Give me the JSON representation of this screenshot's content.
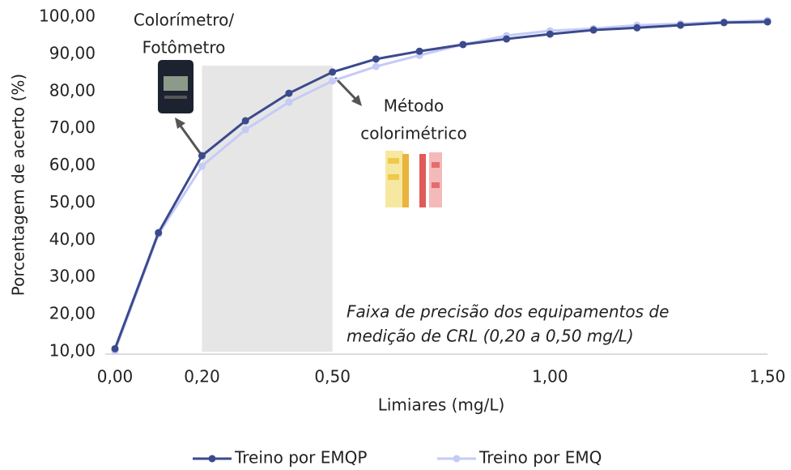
{
  "chart_data": {
    "type": "line",
    "x_label": "Limiares (mg/L)",
    "y_label": "Porcentagem de acerto (%)",
    "x": [
      0,
      0.1,
      0.2,
      0.3,
      0.4,
      0.5,
      0.6,
      0.7,
      0.8,
      0.9,
      1.0,
      1.1,
      1.2,
      1.3,
      1.4,
      1.5
    ],
    "series": [
      {
        "name": "Treino por EMQP",
        "color": "#3b4a8c",
        "values": [
          10.8,
          42.0,
          62.7,
          72.1,
          79.5,
          85.2,
          88.7,
          90.8,
          92.6,
          94.1,
          95.4,
          96.5,
          97.1,
          97.8,
          98.5,
          98.7
        ]
      },
      {
        "name": "Treino por EMQ",
        "color": "#c5cbf5",
        "values": [
          10.2,
          41.6,
          59.9,
          69.7,
          77.1,
          82.8,
          86.7,
          89.7,
          92.6,
          95.0,
          96.3,
          96.9,
          97.8,
          98.2,
          98.7,
          99.1
        ]
      }
    ],
    "xlim": [
      0,
      1.5
    ],
    "xticks": [
      {
        "value": 0,
        "label": "0,00"
      },
      {
        "value": 0.2,
        "label": "0,20"
      },
      {
        "value": 0.5,
        "label": "0,50"
      },
      {
        "value": 1.0,
        "label": "1,00"
      },
      {
        "value": 1.5,
        "label": "1,50"
      }
    ],
    "ylim": [
      10,
      100
    ],
    "yticks": [
      {
        "value": 10,
        "label": "10,00"
      },
      {
        "value": 20,
        "label": "20,00"
      },
      {
        "value": 30,
        "label": "30,00"
      },
      {
        "value": 40,
        "label": "40,00"
      },
      {
        "value": 50,
        "label": "50,00"
      },
      {
        "value": 60,
        "label": "60,00"
      },
      {
        "value": 70,
        "label": "70,00"
      },
      {
        "value": 80,
        "label": "80,00"
      },
      {
        "value": 90,
        "label": "90,00"
      },
      {
        "value": 100,
        "label": "100,00"
      }
    ],
    "shaded_range": [
      0.2,
      0.5
    ],
    "legend": "bottom",
    "annotations": {
      "device": [
        "Colorímetro/",
        "Fotômetro"
      ],
      "method": [
        "Método",
        "colorimétrico"
      ],
      "range": [
        "Faixa de precisão dos equipamentos de",
        "medição de CRL (0,20 a 0,50 mg/L)"
      ]
    }
  }
}
